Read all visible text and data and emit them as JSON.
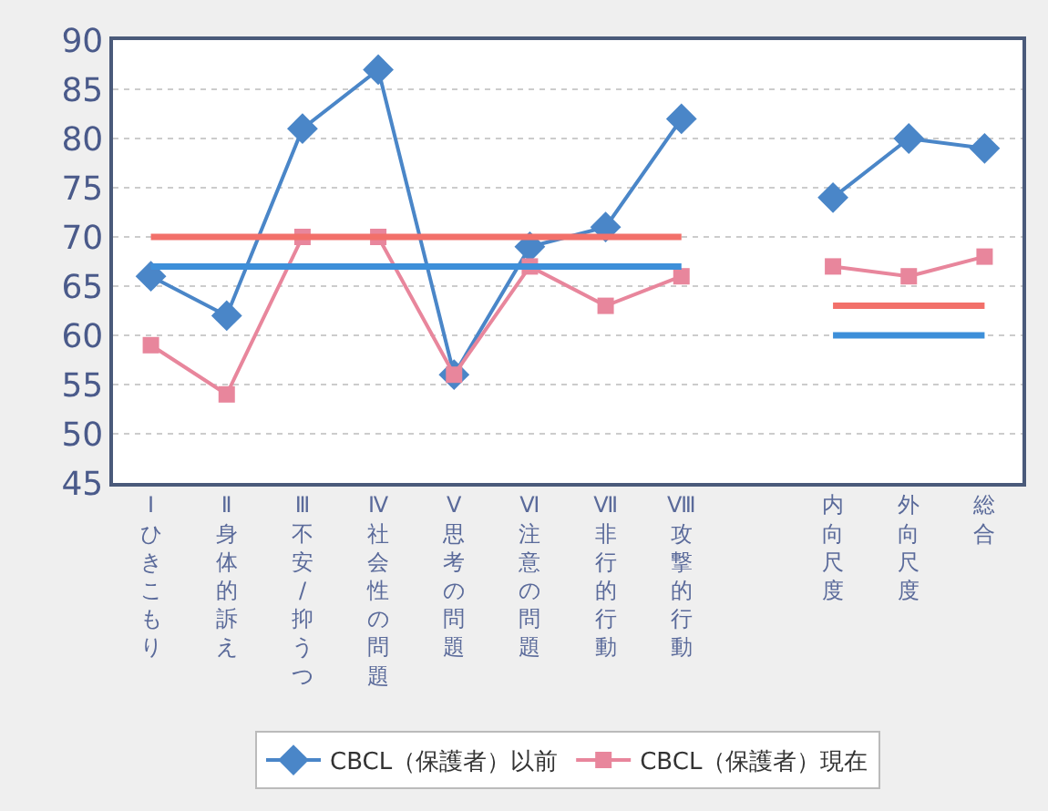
{
  "chart_data": {
    "type": "line",
    "categories": [
      "Ⅰひきこもり",
      "Ⅱ身体的訴え",
      "Ⅲ不安/抑うつ",
      "Ⅳ社会性の問題",
      "Ⅴ思考の問題",
      "Ⅵ注意の問題",
      "Ⅶ非行的行動",
      "Ⅷ攻撃的行動",
      null,
      "内向尺度",
      "外向尺度",
      "総合"
    ],
    "series": [
      {
        "name": "CBCL（保護者）以前",
        "color": "#4a86c8",
        "marker": "diamond",
        "values": [
          66,
          62,
          81,
          87,
          56,
          69,
          71,
          82,
          null,
          74,
          80,
          79
        ]
      },
      {
        "name": "CBCL（保護者）現在",
        "color": "#e8869c",
        "marker": "square",
        "values": [
          59,
          54,
          70,
          70,
          56,
          67,
          63,
          66,
          null,
          67,
          66,
          68
        ]
      },
      {
        "color": "#f2706a",
        "marker": "none",
        "values": [
          70,
          70,
          70,
          70,
          70,
          70,
          70,
          70,
          null,
          null,
          null,
          null
        ]
      },
      {
        "color": "#3d8fd9",
        "marker": "none",
        "values": [
          67,
          67,
          67,
          67,
          67,
          67,
          67,
          67,
          null,
          null,
          null,
          null
        ]
      },
      {
        "color": "#f2706a",
        "marker": "none",
        "values": [
          null,
          null,
          null,
          null,
          null,
          null,
          null,
          null,
          null,
          63,
          63,
          63
        ]
      },
      {
        "color": "#3d8fd9",
        "marker": "none",
        "values": [
          null,
          null,
          null,
          null,
          null,
          null,
          null,
          null,
          null,
          60,
          60,
          60
        ]
      }
    ],
    "ylim": [
      45,
      90
    ],
    "yticks": [
      45,
      50,
      55,
      60,
      65,
      70,
      75,
      80,
      85,
      90
    ],
    "grid": "y",
    "legend": "bottom",
    "line_style": "solid"
  }
}
